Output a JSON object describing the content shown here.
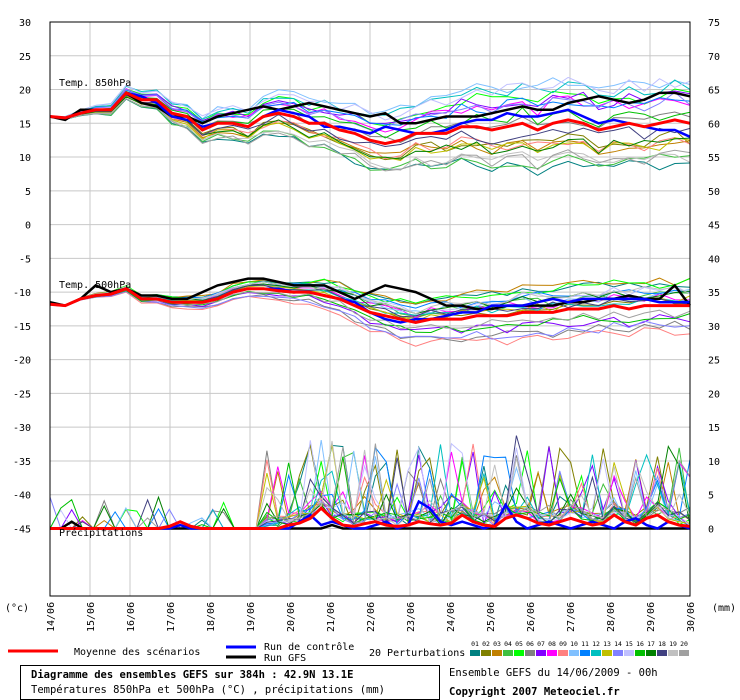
{
  "chart_data": {
    "type": "line",
    "left_axis": {
      "unit_label": "(°c)",
      "ylim": [
        -55,
        30
      ],
      "ticks": [
        30,
        25,
        20,
        15,
        10,
        5,
        0,
        -5,
        -10,
        -15,
        -20,
        -25,
        -30,
        -35,
        -40,
        -45
      ]
    },
    "right_axis": {
      "unit_label": "(mm)",
      "ticks": [
        75,
        70,
        65,
        60,
        55,
        50,
        45,
        40,
        35,
        30,
        25,
        20,
        15,
        10,
        5,
        0
      ]
    },
    "x": {
      "tick_labels": [
        "14/06",
        "15/06",
        "16/06",
        "17/06",
        "18/06",
        "19/06",
        "20/06",
        "21/06",
        "22/06",
        "23/06",
        "24/06",
        "25/06",
        "26/06",
        "27/06",
        "28/06",
        "29/06",
        "30/06"
      ]
    },
    "panel_labels": {
      "t850": "Temp. 850hPa",
      "t500": "Temp. 500hPa",
      "precip": "Précipitations"
    },
    "grid": true,
    "temp850": {
      "mean": [
        16,
        15.8,
        16.5,
        17,
        17,
        19.5,
        18.5,
        18.5,
        16.5,
        16,
        14,
        15,
        15,
        14.5,
        16,
        16.5,
        16,
        15,
        15,
        14,
        13.5,
        12.5,
        12,
        12.5,
        13.5,
        13.5,
        13.5,
        14.5,
        14.5,
        14,
        14.5,
        15,
        14,
        15,
        15.5,
        15,
        14,
        14.5,
        15,
        14.5,
        15,
        15.5,
        15
      ],
      "control": [
        16,
        15.8,
        16.5,
        17,
        17,
        19.5,
        19,
        18,
        16,
        15.5,
        14.5,
        15,
        15,
        14.5,
        16,
        17,
        16.5,
        16,
        14.5,
        14.5,
        14,
        13.5,
        14.5,
        14,
        13.5,
        13.5,
        14,
        15,
        15.5,
        15.5,
        16.5,
        16,
        16,
        16.5,
        17,
        16,
        15,
        15.5,
        15,
        14.5,
        14,
        14,
        13
      ],
      "gfs": [
        16,
        15.5,
        17,
        17,
        17,
        19.5,
        18,
        17.5,
        16,
        16,
        15,
        16,
        16.5,
        17,
        17.5,
        17,
        17.5,
        18,
        17.5,
        17,
        16.5,
        16,
        16.5,
        15,
        15,
        15.5,
        16,
        16,
        16,
        16.5,
        17,
        17.5,
        17,
        17,
        18,
        18.5,
        19,
        18.5,
        18,
        18.5,
        19.5,
        19.5,
        19
      ]
    },
    "temp500": {
      "mean": [
        -11.8,
        -12,
        -11,
        -10.5,
        -10.3,
        -9.5,
        -11,
        -11,
        -11.5,
        -11.5,
        -11.5,
        -11,
        -10,
        -9.5,
        -9.5,
        -9.8,
        -10,
        -10,
        -10.5,
        -11,
        -12,
        -13,
        -13.5,
        -14,
        -14.5,
        -14,
        -14,
        -14,
        -13.5,
        -13.5,
        -13.5,
        -13,
        -13,
        -13,
        -12.5,
        -12.5,
        -12.5,
        -12,
        -12.5,
        -12,
        -12,
        -12,
        -12
      ],
      "control": [
        -11.8,
        -12,
        -11,
        -10.5,
        -10.3,
        -9.5,
        -11,
        -11,
        -11.5,
        -11.5,
        -11.5,
        -11,
        -10,
        -9.5,
        -9.5,
        -9.5,
        -10,
        -10,
        -10.5,
        -11,
        -11.5,
        -13,
        -14,
        -14.5,
        -14,
        -14,
        -13.5,
        -13,
        -13,
        -12,
        -12,
        -12,
        -11.5,
        -11,
        -11.5,
        -11,
        -11,
        -11,
        -11,
        -11,
        -11.5,
        -11.5,
        -11.5
      ],
      "gfs": [
        -11.5,
        -12,
        -11,
        -9,
        -10,
        -9.5,
        -10.5,
        -10.5,
        -11,
        -11,
        -10,
        -9,
        -8.5,
        -8,
        -8,
        -8.5,
        -9,
        -9,
        -9,
        -10,
        -11,
        -10,
        -9,
        -9.5,
        -10,
        -11,
        -12,
        -12,
        -12.5,
        -12.5,
        -12,
        -12,
        -12,
        -12,
        -11.5,
        -11.5,
        -11,
        -11,
        -10.5,
        -11,
        -11,
        -9,
        -12
      ]
    },
    "precip": {
      "mean": [
        0,
        0,
        0,
        0,
        0,
        0,
        0,
        0,
        0,
        0,
        0,
        0.3,
        1,
        0.3,
        0,
        0,
        0,
        0,
        0,
        0,
        0,
        0,
        0.5,
        0.8,
        1.5,
        3,
        1.5,
        0.5,
        0.3,
        0.7,
        1,
        0.5,
        0.3,
        0.5,
        1,
        0.7,
        0.5,
        0.8,
        2,
        1,
        0.5,
        0.3,
        1.5,
        2,
        1.5,
        0.8,
        0.5,
        1,
        1.5,
        1,
        0.5,
        0.8,
        2,
        1,
        0.5,
        1.5,
        2,
        1,
        0.5,
        0.3
      ],
      "control": [
        0,
        0,
        0,
        0,
        0,
        0,
        0,
        0,
        0,
        0,
        0,
        0,
        0.5,
        0,
        0,
        0,
        0,
        0,
        0,
        0,
        0,
        0,
        0,
        1,
        2,
        0.5,
        1,
        0.5,
        0,
        0,
        0.5,
        1,
        0,
        0.5,
        4,
        3,
        1,
        0.5,
        1,
        0.5,
        0,
        0.5,
        3.5,
        1,
        0,
        0.5,
        1,
        0.5,
        0,
        0.5,
        1,
        0.5,
        0,
        1,
        1.5,
        0.5,
        0,
        1,
        0.5,
        0
      ],
      "gfs": [
        0,
        0,
        1,
        0,
        0,
        0,
        0,
        0,
        0,
        0,
        0,
        0,
        0,
        0,
        0,
        0,
        0,
        0,
        0,
        0,
        0,
        0,
        0,
        0,
        0,
        0,
        0.5,
        0,
        0,
        0,
        0,
        0,
        0,
        0,
        0,
        0,
        0,
        0,
        0,
        0,
        0,
        0,
        0,
        0,
        0,
        0,
        0,
        0,
        0,
        0,
        0,
        0,
        0,
        0,
        0,
        0,
        0,
        0,
        0,
        0
      ]
    }
  },
  "legend": {
    "mean_label": "Moyenne des scénarios",
    "control_label": "Run de contrôle",
    "gfs_label": "Run GFS",
    "perturbations_label": "20 Perturbations",
    "perturbation_numbers": [
      "01",
      "02",
      "03",
      "04",
      "05",
      "06",
      "07",
      "08",
      "09",
      "10",
      "11",
      "12",
      "13",
      "14",
      "15",
      "16",
      "17",
      "18",
      "19",
      "20"
    ],
    "perturbation_colors": [
      "#008080",
      "#808000",
      "#c08000",
      "#40c040",
      "#00ff00",
      "#808080",
      "#8000ff",
      "#ff00ff",
      "#ff8080",
      "#80c0ff",
      "#0080ff",
      "#00c0c0",
      "#c0c000",
      "#8080ff",
      "#c0c0ff",
      "#00c000",
      "#008000",
      "#404080",
      "#c0c0c0",
      "#a0a0a0"
    ],
    "mean_color": "#ff0000",
    "control_color": "#0000ff",
    "gfs_color": "#000000"
  },
  "info_box": {
    "title": "Diagramme des ensembles GEFS sur 384h : 42.9N 13.1E",
    "subtitle": "Températures 850hPa et 500hPa (°C) , précipitations (mm)"
  },
  "footer": {
    "run_info": "Ensemble GEFS du 14/06/2009 - 00h",
    "copyright": "Copyright 2007 Meteociel.fr"
  }
}
